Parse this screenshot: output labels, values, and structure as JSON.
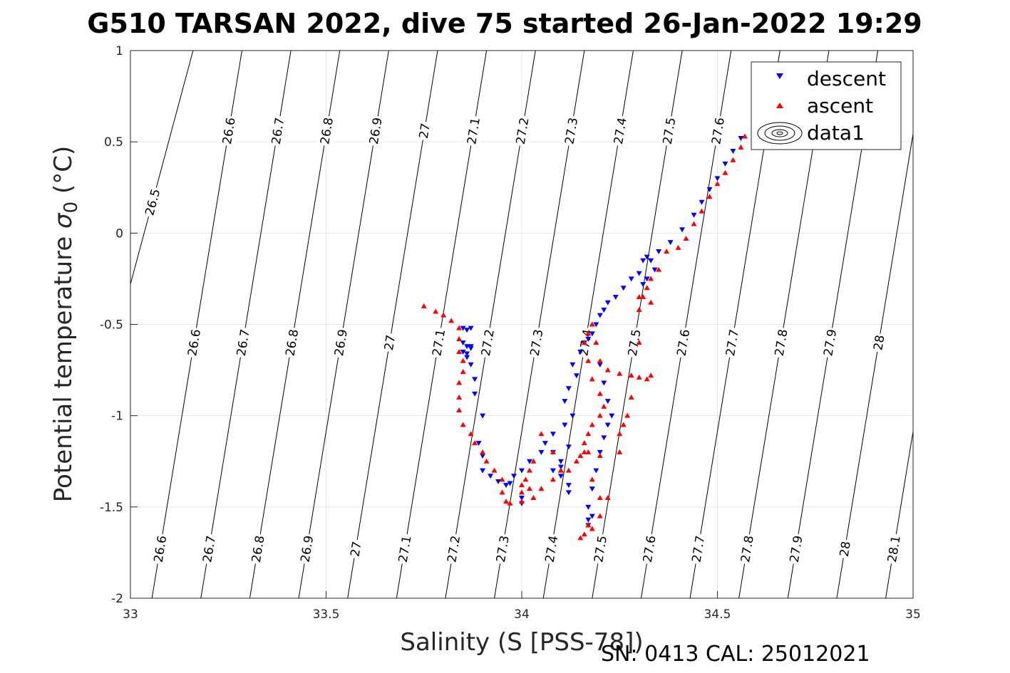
{
  "title": "G510 TARSAN 2022, dive 75 started 26-Jan-2022 19:29",
  "footer": "SN: 0413  CAL: 25012021",
  "chart_data": {
    "type": "scatter",
    "title": "G510 TARSAN 2022, dive 75 started 26-Jan-2022 19:29",
    "xlabel": "Salinity (S [PSS-78])",
    "ylabel_main": "Potential temperature ",
    "ylabel_symbol": "σ",
    "ylabel_sub": "0",
    "ylabel_unit": " (°C)",
    "xlim": [
      33,
      35
    ],
    "ylim": [
      -2,
      1
    ],
    "xticks": [
      "33",
      "33.5",
      "34",
      "34.5",
      "35"
    ],
    "yticks": [
      "-2",
      "-1.5",
      "-1",
      "-0.5",
      "0",
      "0.5",
      "1"
    ],
    "grid": true,
    "legend_position": "top-right",
    "legend": [
      "descent",
      "ascent",
      "data1"
    ],
    "colors": {
      "descent": "#0000ff",
      "ascent": "#ff0000",
      "contour": "#000000",
      "grid": "#e6e6e6"
    },
    "contours": {
      "levels": [
        "26.5",
        "26.6",
        "26.7",
        "26.8",
        "26.9",
        "27",
        "27.1",
        "27.2",
        "27.3",
        "27.4",
        "27.5",
        "27.6",
        "27.7",
        "27.8",
        "27.9",
        "28",
        "28.1"
      ],
      "salinity_at_t_minus2": [
        null,
        33.055,
        33.18,
        33.305,
        33.43,
        33.555,
        33.68,
        33.805,
        33.93,
        34.055,
        34.18,
        34.305,
        34.43,
        34.555,
        34.68,
        34.805,
        34.93
      ],
      "salinity_at_t_plus1": [
        33.16,
        33.285,
        33.41,
        33.535,
        33.66,
        33.785,
        33.91,
        34.035,
        34.16,
        34.285,
        34.41,
        34.535,
        34.66,
        34.785,
        34.91,
        35.035,
        35.16
      ],
      "upper_label_levels": [
        "26.5",
        "26.6",
        "26.7",
        "26.8",
        "26.9",
        "27",
        "27.1",
        "27.2",
        "27.3",
        "27.4",
        "27.5",
        "27.6",
        "27.7"
      ],
      "upper_label_t": [
        0.17,
        0.56,
        0.56,
        0.56,
        0.56,
        0.56,
        0.56,
        0.56,
        0.56,
        0.56,
        0.56,
        0.56,
        0.56
      ],
      "middle_label_levels": [
        "26.6",
        "26.7",
        "26.8",
        "26.9",
        "27",
        "27.1",
        "27.2",
        "27.3",
        "27.4",
        "27.5",
        "27.6",
        "27.7",
        "27.8",
        "27.9",
        "28",
        "28.1"
      ],
      "middle_label_t": -0.6,
      "lower_label_levels": [
        "26.6",
        "26.7",
        "26.8",
        "26.9",
        "27",
        "27.1",
        "27.2",
        "27.3",
        "27.4",
        "27.5",
        "27.6",
        "27.7",
        "27.8",
        "27.9",
        "28",
        "28.1"
      ],
      "lower_label_t": -1.73
    },
    "series": [
      {
        "name": "descent",
        "marker": "triangle-down",
        "points": [
          [
            33.85,
            -0.52
          ],
          [
            33.86,
            -0.53
          ],
          [
            33.87,
            -0.52
          ],
          [
            33.85,
            -0.6
          ],
          [
            33.86,
            -0.62
          ],
          [
            33.87,
            -0.63
          ],
          [
            33.85,
            -0.65
          ],
          [
            33.86,
            -0.66
          ],
          [
            33.87,
            -0.62
          ],
          [
            33.86,
            -0.68
          ],
          [
            33.87,
            -0.72
          ],
          [
            33.88,
            -0.8
          ],
          [
            33.88,
            -0.88
          ],
          [
            33.9,
            -1.0
          ],
          [
            33.89,
            -1.15
          ],
          [
            33.9,
            -1.22
          ],
          [
            33.9,
            -1.3
          ],
          [
            33.92,
            -1.33
          ],
          [
            33.94,
            -1.36
          ],
          [
            33.96,
            -1.38
          ],
          [
            33.97,
            -1.37
          ],
          [
            33.98,
            -1.33
          ],
          [
            34.0,
            -1.3
          ],
          [
            34.0,
            -1.45
          ],
          [
            34.0,
            -1.48
          ],
          [
            34.02,
            -1.25
          ],
          [
            34.05,
            -1.2
          ],
          [
            34.06,
            -1.15
          ],
          [
            34.08,
            -1.2
          ],
          [
            34.1,
            -1.28
          ],
          [
            34.12,
            -1.38
          ],
          [
            34.1,
            -1.33
          ],
          [
            34.12,
            -1.42
          ],
          [
            34.08,
            -1.3
          ],
          [
            34.1,
            -1.25
          ],
          [
            34.12,
            -1.17
          ],
          [
            34.08,
            -1.1
          ],
          [
            34.11,
            -1.05
          ],
          [
            34.13,
            -1.0
          ],
          [
            34.11,
            -0.92
          ],
          [
            34.12,
            -0.85
          ],
          [
            34.14,
            -0.78
          ],
          [
            34.13,
            -0.72
          ],
          [
            34.15,
            -0.65
          ],
          [
            34.16,
            -0.6
          ],
          [
            34.17,
            -0.58
          ],
          [
            34.18,
            -0.55
          ],
          [
            34.19,
            -0.5
          ],
          [
            34.2,
            -0.45
          ],
          [
            34.21,
            -0.42
          ],
          [
            34.22,
            -0.38
          ],
          [
            34.24,
            -0.35
          ],
          [
            34.26,
            -0.3
          ],
          [
            34.28,
            -0.25
          ],
          [
            34.3,
            -0.22
          ],
          [
            34.31,
            -0.15
          ],
          [
            34.32,
            -0.13
          ],
          [
            34.33,
            -0.15
          ],
          [
            34.34,
            -0.2
          ],
          [
            34.32,
            -0.25
          ],
          [
            34.31,
            -0.28
          ],
          [
            34.35,
            -0.1
          ],
          [
            34.38,
            -0.05
          ],
          [
            34.41,
            0.02
          ],
          [
            34.44,
            0.1
          ],
          [
            34.46,
            0.17
          ],
          [
            34.48,
            0.24
          ],
          [
            34.5,
            0.3
          ],
          [
            34.52,
            0.38
          ],
          [
            34.54,
            0.45
          ],
          [
            34.56,
            0.52
          ],
          [
            34.2,
            -0.72
          ],
          [
            34.21,
            -0.82
          ],
          [
            34.22,
            -0.92
          ],
          [
            34.23,
            -1.0
          ],
          [
            34.22,
            -1.05
          ],
          [
            34.21,
            -1.12
          ],
          [
            34.2,
            -1.2
          ],
          [
            34.19,
            -1.3
          ],
          [
            34.18,
            -1.4
          ],
          [
            34.17,
            -1.5
          ],
          [
            34.18,
            -1.55
          ],
          [
            34.17,
            -1.6
          ],
          [
            34.17,
            -1.57
          ]
        ]
      },
      {
        "name": "ascent",
        "marker": "triangle-up",
        "points": [
          [
            33.75,
            -0.4
          ],
          [
            33.78,
            -0.43
          ],
          [
            33.8,
            -0.45
          ],
          [
            33.82,
            -0.48
          ],
          [
            33.84,
            -0.52
          ],
          [
            33.84,
            -0.58
          ],
          [
            33.84,
            -0.65
          ],
          [
            33.85,
            -0.7
          ],
          [
            33.85,
            -0.76
          ],
          [
            33.84,
            -0.82
          ],
          [
            33.84,
            -0.9
          ],
          [
            33.84,
            -0.97
          ],
          [
            33.85,
            -1.05
          ],
          [
            33.87,
            -1.1
          ],
          [
            33.88,
            -1.15
          ],
          [
            33.9,
            -1.2
          ],
          [
            33.91,
            -1.25
          ],
          [
            33.93,
            -1.3
          ],
          [
            33.95,
            -1.35
          ],
          [
            33.95,
            -1.42
          ],
          [
            33.96,
            -1.47
          ],
          [
            33.97,
            -1.48
          ],
          [
            34.0,
            -1.47
          ],
          [
            34.03,
            -1.45
          ],
          [
            34.05,
            -1.4
          ],
          [
            34.08,
            -1.35
          ],
          [
            34.1,
            -1.3
          ],
          [
            34.12,
            -1.3
          ],
          [
            34.14,
            -1.25
          ],
          [
            34.15,
            -1.22
          ],
          [
            34.16,
            -1.2
          ],
          [
            34.16,
            -1.15
          ],
          [
            34.17,
            -1.1
          ],
          [
            34.18,
            -1.05
          ],
          [
            34.2,
            -1.0
          ],
          [
            34.21,
            -0.95
          ],
          [
            34.2,
            -0.88
          ],
          [
            34.18,
            -0.8
          ],
          [
            34.17,
            -0.7
          ],
          [
            34.16,
            -0.6
          ],
          [
            34.17,
            -0.55
          ],
          [
            34.18,
            -0.5
          ],
          [
            34.19,
            -0.6
          ],
          [
            34.2,
            -0.7
          ],
          [
            34.22,
            -0.75
          ],
          [
            34.25,
            -0.77
          ],
          [
            34.28,
            -0.78
          ],
          [
            34.3,
            -0.79
          ],
          [
            34.32,
            -0.8
          ],
          [
            34.33,
            -0.78
          ],
          [
            34.3,
            -0.6
          ],
          [
            34.28,
            -0.9
          ],
          [
            34.27,
            -1.0
          ],
          [
            34.26,
            -1.05
          ],
          [
            34.25,
            -1.1
          ],
          [
            34.25,
            -1.2
          ],
          [
            34.2,
            -1.22
          ],
          [
            34.17,
            -1.2
          ],
          [
            34.18,
            -1.35
          ],
          [
            34.2,
            -1.45
          ],
          [
            34.2,
            -1.55
          ],
          [
            34.17,
            -1.6
          ],
          [
            34.16,
            -1.65
          ],
          [
            34.15,
            -1.67
          ],
          [
            34.18,
            -1.62
          ],
          [
            34.22,
            -1.45
          ],
          [
            34.1,
            -1.3
          ],
          [
            34.08,
            -1.2
          ],
          [
            34.05,
            -1.1
          ],
          [
            34.03,
            -1.25
          ],
          [
            34.02,
            -1.3
          ],
          [
            34.01,
            -1.35
          ],
          [
            34.0,
            -1.38
          ],
          [
            34.0,
            -1.42
          ],
          [
            34.02,
            -1.4
          ],
          [
            34.3,
            -0.42
          ],
          [
            34.3,
            -0.35
          ],
          [
            34.32,
            -0.3
          ],
          [
            34.33,
            -0.25
          ],
          [
            34.35,
            -0.2
          ],
          [
            34.37,
            -0.1
          ],
          [
            34.4,
            -0.08
          ],
          [
            34.42,
            -0.03
          ],
          [
            34.44,
            0.05
          ],
          [
            34.46,
            0.12
          ],
          [
            34.48,
            0.2
          ],
          [
            34.5,
            0.27
          ],
          [
            34.52,
            0.33
          ],
          [
            34.54,
            0.4
          ],
          [
            34.56,
            0.47
          ],
          [
            34.57,
            0.53
          ],
          [
            34.33,
            -0.38
          ],
          [
            34.31,
            -0.35
          ]
        ]
      }
    ]
  }
}
